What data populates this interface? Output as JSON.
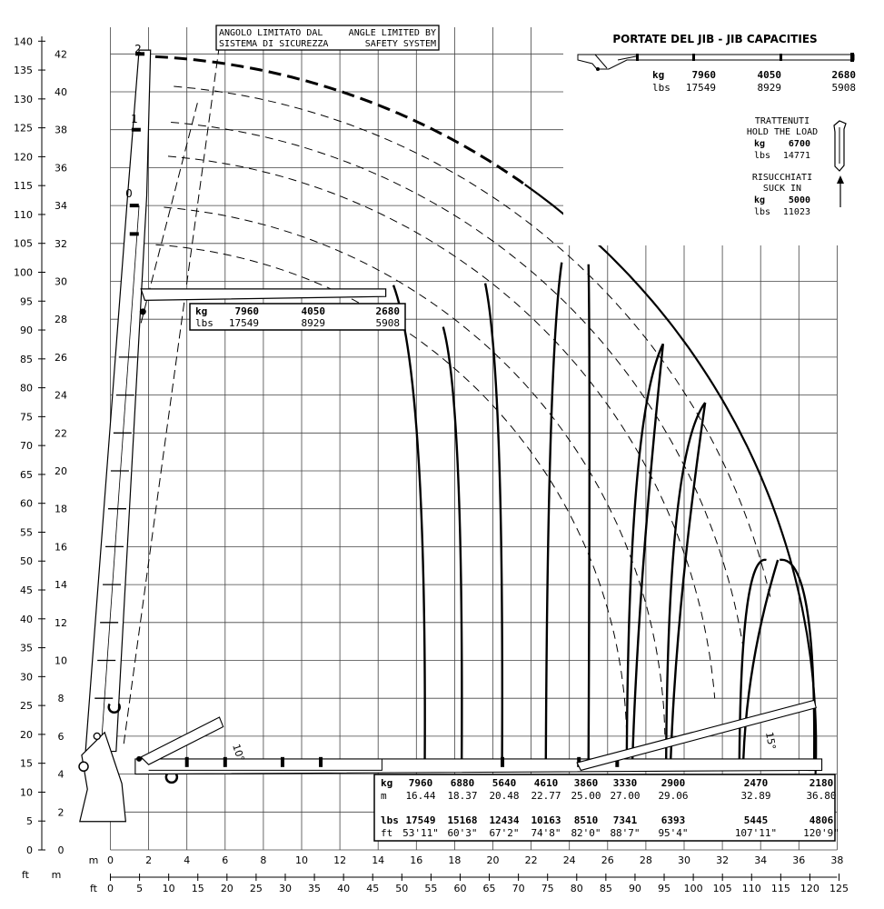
{
  "chart_data": {
    "type": "diagram",
    "axes": {
      "left_ft_label": "ft",
      "left_m_label": "m",
      "bottom_m_label": "m",
      "bottom_ft_label": "ft",
      "ft_ticks_left": [
        "0",
        "5",
        "10",
        "15",
        "20",
        "25",
        "30",
        "35",
        "40",
        "45",
        "50",
        "55",
        "60",
        "65",
        "70",
        "75",
        "80",
        "85",
        "90",
        "95",
        "100",
        "105",
        "110",
        "115",
        "120",
        "125",
        "130",
        "135",
        "140"
      ],
      "m_ticks_left": [
        "2",
        "4",
        "6",
        "8",
        "10",
        "12",
        "14",
        "16",
        "18",
        "20",
        "22",
        "24",
        "26",
        "28",
        "30",
        "32",
        "34",
        "36",
        "38",
        "40",
        "42"
      ],
      "m_ticks_bottom": [
        "0",
        "2",
        "4",
        "6",
        "8",
        "10",
        "12",
        "14",
        "16",
        "18",
        "20",
        "22",
        "24",
        "26",
        "28",
        "30",
        "32",
        "34",
        "36",
        "38"
      ],
      "ft_ticks_bottom": [
        "0",
        "5",
        "10",
        "15",
        "20",
        "25",
        "30",
        "35",
        "40",
        "45",
        "50",
        "55",
        "60",
        "65",
        "70",
        "75",
        "80",
        "85",
        "90",
        "95",
        "100",
        "105",
        "110",
        "115",
        "120",
        "125"
      ]
    },
    "angle_note": {
      "it_line1": "ANGOLO LIMITATO DAL",
      "it_line2": "SISTEMA DI SICUREZZA",
      "en_line1": "ANGLE LIMITED BY",
      "en_line2": "SAFETY SYSTEM"
    },
    "jib_capacities": {
      "title": "PORTATE DEL JIB  -  JIB CAPACITIES",
      "kg_label": "kg",
      "lbs_label": "lbs",
      "kg": [
        "7960",
        "4050",
        "2680"
      ],
      "lbs": [
        "17549",
        "8929",
        "5908"
      ]
    },
    "hold_load": {
      "line1": "TRATTENUTI",
      "line2": "HOLD THE LOAD",
      "kg_label": "kg",
      "kg": "6700",
      "lbs_label": "lbs",
      "lbs": "14771"
    },
    "suck_in": {
      "line1": "RISUCCHIATI",
      "line2": "SUCK IN",
      "kg_label": "kg",
      "kg": "5000",
      "lbs_label": "lbs",
      "lbs": "11023"
    },
    "boom_box": {
      "kg_label": "kg",
      "lbs_label": "lbs",
      "kg": [
        "7960",
        "4050",
        "2680"
      ],
      "lbs": [
        "17549",
        "8929",
        "5908"
      ]
    },
    "jib_positions": [
      "0",
      "1",
      "2"
    ],
    "angle_labels": [
      "10°",
      "15°"
    ],
    "outreach_table": {
      "kg_label": "kg",
      "m_label": "m",
      "lbs_label": "lbs",
      "ft_label": "ft",
      "kg": [
        "7960",
        "6880",
        "5640",
        "4610",
        "3860",
        "3330",
        "2900",
        "2470",
        "2180"
      ],
      "m": [
        "16.44",
        "18.37",
        "20.48",
        "22.77",
        "25.00",
        "27.00",
        "29.06",
        "32.89",
        "36.80"
      ],
      "lbs": [
        "17549",
        "15168",
        "12434",
        "10163",
        "8510",
        "7341",
        "6393",
        "5445",
        "4806"
      ],
      "ft": [
        "53'11\"",
        "60'3\"",
        "67'2\"",
        "74'8\"",
        "82'0\"",
        "88'7\"",
        "95'4\"",
        "107'11\"",
        "120'9\""
      ]
    },
    "envelope_reach_m": [
      16.44,
      18.37,
      20.48,
      22.77,
      25.0,
      27.0,
      29.06,
      32.89,
      36.8
    ]
  }
}
